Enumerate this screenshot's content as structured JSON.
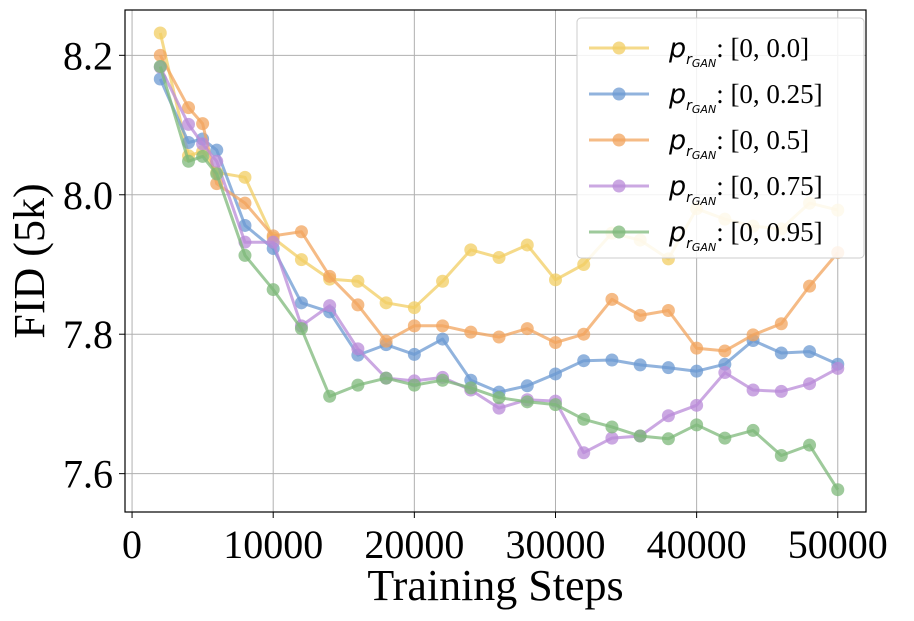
{
  "chart_data": {
    "type": "line",
    "title": "",
    "xlabel": "Training Steps",
    "ylabel": "FID (5k)",
    "xlim": [
      -500,
      52000
    ],
    "ylim": [
      7.545,
      8.265
    ],
    "xticks": [
      0,
      10000,
      20000,
      30000,
      40000,
      50000
    ],
    "xtick_labels": [
      "0",
      "10000",
      "20000",
      "30000",
      "40000",
      "50000"
    ],
    "yticks": [
      7.6,
      7.8,
      8.0,
      8.2
    ],
    "ytick_labels": [
      "7.6",
      "7.8",
      "8.0",
      "8.2"
    ],
    "grid": true,
    "legend_position": "top-right",
    "legend_symbol": {
      "base": "p",
      "sub": "r",
      "subsub": "GAN"
    },
    "x": [
      2000,
      4000,
      5000,
      6000,
      8000,
      10000,
      12000,
      14000,
      16000,
      18000,
      20000,
      22000,
      24000,
      26000,
      28000,
      30000,
      32000,
      34000,
      36000,
      38000,
      40000,
      42000,
      44000,
      46000,
      48000,
      50000
    ],
    "series": [
      {
        "name": "pr_GAN: [0, 0.0]",
        "legend_range": ": [0, 0.0]",
        "color": "#F1CE63",
        "values": [
          8.232,
          8.056,
          8.062,
          8.032,
          8.025,
          7.938,
          7.907,
          7.879,
          7.876,
          7.845,
          7.838,
          7.876,
          7.921,
          7.91,
          7.928,
          7.878,
          7.9,
          7.945,
          7.935,
          7.908,
          7.98,
          7.965,
          7.955,
          7.951,
          7.988,
          7.978
        ]
      },
      {
        "name": "pr_GAN: [0, 0.25]",
        "legend_range": ": [0, 0.25]",
        "color": "#6C9AD2",
        "values": [
          8.166,
          8.075,
          8.08,
          8.064,
          7.956,
          7.923,
          7.845,
          7.832,
          7.77,
          7.785,
          7.771,
          7.793,
          7.734,
          7.717,
          7.726,
          7.743,
          7.762,
          7.763,
          7.756,
          7.752,
          7.747,
          7.757,
          7.791,
          7.773,
          7.775,
          7.757
        ]
      },
      {
        "name": "pr_GAN: [0, 0.5]",
        "legend_range": ": [0, 0.5]",
        "color": "#F2A45E",
        "values": [
          8.2,
          8.125,
          8.102,
          8.016,
          7.988,
          7.941,
          7.947,
          7.883,
          7.842,
          7.79,
          7.812,
          7.812,
          7.803,
          7.796,
          7.808,
          7.788,
          7.8,
          7.85,
          7.827,
          7.834,
          7.78,
          7.776,
          7.799,
          7.815,
          7.869,
          7.917
        ]
      },
      {
        "name": "pr_GAN: [0, 0.75]",
        "legend_range": ": [0, 0.75]",
        "color": "#B98BD8",
        "values": [
          8.183,
          8.101,
          8.073,
          8.048,
          7.932,
          7.932,
          7.812,
          7.841,
          7.779,
          7.737,
          7.733,
          7.738,
          7.72,
          7.694,
          7.706,
          7.704,
          7.63,
          7.651,
          7.654,
          7.683,
          7.698,
          7.745,
          7.72,
          7.718,
          7.729,
          7.751
        ]
      },
      {
        "name": "pr_GAN: [0, 0.95]",
        "legend_range": ": [0, 0.95]",
        "color": "#7DB87A",
        "values": [
          8.184,
          8.048,
          8.055,
          8.03,
          7.913,
          7.864,
          7.808,
          7.711,
          7.727,
          7.737,
          7.727,
          7.734,
          7.723,
          7.709,
          7.703,
          7.699,
          7.678,
          7.667,
          7.654,
          7.65,
          7.67,
          7.651,
          7.662,
          7.626,
          7.641,
          7.577
        ]
      }
    ]
  }
}
